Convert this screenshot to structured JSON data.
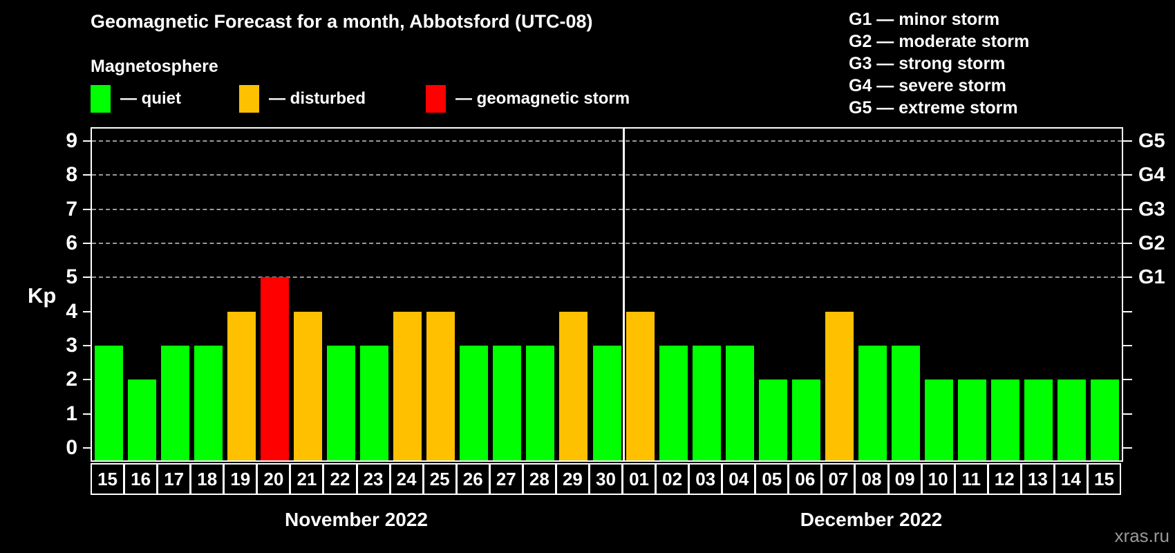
{
  "title": "Geomagnetic Forecast for a month, Abbotsford (UTC-08)",
  "subtitle": "Magnetosphere",
  "legend": {
    "items": [
      {
        "name": "quiet",
        "color": "#00ff00",
        "label": "— quiet",
        "x": 131
      },
      {
        "name": "disturbed",
        "color": "#ffc000",
        "label": "— disturbed",
        "x": 346
      },
      {
        "name": "storm",
        "color": "#ff0000",
        "label": "— geomagnetic storm",
        "x": 616
      }
    ]
  },
  "storm_scale": {
    "lines": [
      {
        "label": "G1 — minor storm"
      },
      {
        "label": "G2 — moderate storm"
      },
      {
        "label": "G3 — strong storm"
      },
      {
        "label": "G4 — severe storm"
      },
      {
        "label": "G5 — extreme storm"
      }
    ]
  },
  "watermark": "xras.ru",
  "chart_data": {
    "type": "bar",
    "title": "Geomagnetic Forecast for a month, Abbotsford (UTC-08)",
    "ylabel": "Kp",
    "ylim": [
      0,
      9
    ],
    "yticks": [
      "0",
      "1",
      "2",
      "3",
      "4",
      "5",
      "6",
      "7",
      "8",
      "9"
    ],
    "grid": "horizontal dashed lines at Kp 5-9 (storm levels G1-G5)",
    "gridlines_at": [
      5,
      6,
      7,
      8,
      9
    ],
    "right_axis_labels": [
      {
        "kp": 5,
        "label": "G1"
      },
      {
        "kp": 6,
        "label": "G2"
      },
      {
        "kp": 7,
        "label": "G3"
      },
      {
        "kp": 8,
        "label": "G4"
      },
      {
        "kp": 9,
        "label": "G5"
      }
    ],
    "colors": {
      "quiet": "#00ff00",
      "disturbed": "#ffc000",
      "storm": "#ff0000"
    },
    "legend_position": "above chart, top-left",
    "groups": [
      {
        "month": "November 2022",
        "days": [
          {
            "day": "15",
            "kp": 3,
            "status": "quiet"
          },
          {
            "day": "16",
            "kp": 2,
            "status": "quiet"
          },
          {
            "day": "17",
            "kp": 3,
            "status": "quiet"
          },
          {
            "day": "18",
            "kp": 3,
            "status": "quiet"
          },
          {
            "day": "19",
            "kp": 4,
            "status": "disturbed"
          },
          {
            "day": "20",
            "kp": 5,
            "status": "storm"
          },
          {
            "day": "21",
            "kp": 4,
            "status": "disturbed"
          },
          {
            "day": "22",
            "kp": 3,
            "status": "quiet"
          },
          {
            "day": "23",
            "kp": 3,
            "status": "quiet"
          },
          {
            "day": "24",
            "kp": 4,
            "status": "disturbed"
          },
          {
            "day": "25",
            "kp": 4,
            "status": "disturbed"
          },
          {
            "day": "26",
            "kp": 3,
            "status": "quiet"
          },
          {
            "day": "27",
            "kp": 3,
            "status": "quiet"
          },
          {
            "day": "28",
            "kp": 3,
            "status": "quiet"
          },
          {
            "day": "29",
            "kp": 4,
            "status": "disturbed"
          },
          {
            "day": "30",
            "kp": 3,
            "status": "quiet"
          }
        ]
      },
      {
        "month": "December 2022",
        "days": [
          {
            "day": "01",
            "kp": 4,
            "status": "disturbed"
          },
          {
            "day": "02",
            "kp": 3,
            "status": "quiet"
          },
          {
            "day": "03",
            "kp": 3,
            "status": "quiet"
          },
          {
            "day": "04",
            "kp": 3,
            "status": "quiet"
          },
          {
            "day": "05",
            "kp": 2,
            "status": "quiet"
          },
          {
            "day": "06",
            "kp": 2,
            "status": "quiet"
          },
          {
            "day": "07",
            "kp": 4,
            "status": "disturbed"
          },
          {
            "day": "08",
            "kp": 3,
            "status": "quiet"
          },
          {
            "day": "09",
            "kp": 3,
            "status": "quiet"
          },
          {
            "day": "10",
            "kp": 2,
            "status": "quiet"
          },
          {
            "day": "11",
            "kp": 2,
            "status": "quiet"
          },
          {
            "day": "12",
            "kp": 2,
            "status": "quiet"
          },
          {
            "day": "13",
            "kp": 2,
            "status": "quiet"
          },
          {
            "day": "14",
            "kp": 2,
            "status": "quiet"
          },
          {
            "day": "15",
            "kp": 2,
            "status": "quiet"
          }
        ]
      }
    ]
  }
}
